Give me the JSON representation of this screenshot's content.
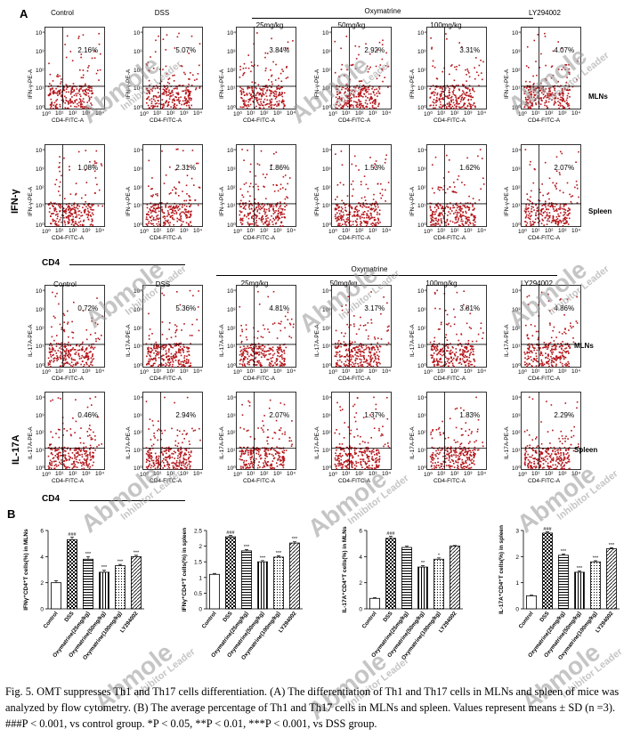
{
  "figure": {
    "panel_a_label": "A",
    "panel_b_label": "B",
    "oxymatrine_group": "Oxymatrine",
    "columns": [
      "Control",
      "DSS",
      "25mg/kg",
      "50mg/kg",
      "100mg/kg",
      "LY294002"
    ],
    "x_axis_label": "CD4-FITC-A",
    "ifn_y_axis_label": "IFN-γ-PE-A",
    "il17_y_axis_label": "IL-17A-PE-A",
    "tick_labels": [
      "10⁰",
      "10¹",
      "10²",
      "10³",
      "10⁴"
    ],
    "row_tags": {
      "mlns": "MLNs",
      "spleen": "Spleen"
    },
    "ifn_marker": "IFN-γ",
    "il17_marker": "IL-17A",
    "cd4_label": "CD4",
    "ifn_mlns_pct": [
      "2.16%",
      "5.07%",
      "3.84%",
      "2.92%",
      "3.31%",
      "4.07%"
    ],
    "ifn_spleen_pct": [
      "1.08%",
      "2.31%",
      "1.86%",
      "1.53%",
      "1.62%",
      "2.07%"
    ],
    "il17_mlns_pct": [
      "0.72%",
      "5.36%",
      "4.81%",
      "3.17%",
      "3.81%",
      "4.86%"
    ],
    "il17_spleen_pct": [
      "0.46%",
      "2.94%",
      "2.07%",
      "1.37%",
      "1.83%",
      "2.29%"
    ],
    "watermark": {
      "brand": "Abmole",
      "tagline": "Inhibitor Leader"
    },
    "caption": "Fig. 5. OMT suppresses Th1 and Th17 cells differentiation. (A) The differentiation of Th1 and Th17 cells in MLNs and spleen of mice was analyzed by flow cytometry. (B) The average percentage of Th1 and Th17 cells in MLNs and spleen. Values represent means ± SD (n =3). ###P < 0.001, vs control group. *P < 0.05, **P < 0.01, ***P < 0.001, vs DSS group."
  },
  "chart_data": [
    {
      "type": "bar",
      "ylabel": "IFNγ⁺CD4⁺T cells(%) in MLNs",
      "categories": [
        "Control",
        "DSS",
        "Oxymatrine(25mg/kg)",
        "Oxymatrine(50mg/kg)",
        "Oxymatrine(100mg/kg)",
        "LY294002"
      ],
      "values": [
        2.0,
        5.3,
        3.8,
        2.8,
        3.3,
        4.0
      ],
      "errors": [
        0.15,
        0.2,
        0.2,
        0.15,
        0.1,
        0.1
      ],
      "sig": [
        "",
        "###",
        "***",
        "***",
        "***",
        "***"
      ],
      "ylim": [
        0,
        6
      ],
      "yticks": [
        0,
        2,
        4,
        6
      ]
    },
    {
      "type": "bar",
      "ylabel": "IFNγ⁺CD4⁺T cells(%) in spleen",
      "categories": [
        "Control",
        "DSS",
        "Oxymatrine(25mg/kg)",
        "Oxymatrine(50mg/kg)",
        "Oxymatrine(100mg/kg)",
        "LY294002"
      ],
      "values": [
        1.1,
        2.3,
        1.85,
        1.5,
        1.65,
        2.1
      ],
      "errors": [
        0.03,
        0.04,
        0.04,
        0.04,
        0.04,
        0.04
      ],
      "sig": [
        "",
        "###",
        "***",
        "***",
        "***",
        "***"
      ],
      "ylim": [
        0,
        2.5
      ],
      "yticks": [
        0.0,
        0.5,
        1.0,
        1.5,
        2.0,
        2.5
      ]
    },
    {
      "type": "bar",
      "ylabel": "IL-17A⁺CD4⁺T cells(%) in MLNs",
      "categories": [
        "Control",
        "DSS",
        "Oxymatrine(25mg/kg)",
        "Oxymatrine(50mg/kg)",
        "Oxymatrine(100mg/kg)",
        "LY294002"
      ],
      "values": [
        0.8,
        5.4,
        4.7,
        3.2,
        3.8,
        4.8
      ],
      "errors": [
        0.05,
        0.15,
        0.1,
        0.1,
        0.1,
        0.05
      ],
      "sig": [
        "",
        "###",
        "",
        "**",
        "*",
        ""
      ],
      "ylim": [
        0,
        6
      ],
      "yticks": [
        0,
        2,
        4,
        6
      ]
    },
    {
      "type": "bar",
      "ylabel": "IL-17A⁺CD4⁺T cells(%) in spleen",
      "categories": [
        "Control",
        "DSS",
        "Oxymatrine(25mg/kg)",
        "Oxymatrine(50mg/kg)",
        "Oxymatrine(100mg/kg)",
        "LY294002"
      ],
      "values": [
        0.5,
        2.9,
        2.05,
        1.4,
        1.8,
        2.3
      ],
      "errors": [
        0.03,
        0.05,
        0.05,
        0.05,
        0.04,
        0.04
      ],
      "sig": [
        "",
        "###",
        "***",
        "***",
        "***",
        "***"
      ],
      "ylim": [
        0,
        3
      ],
      "yticks": [
        0,
        1,
        2,
        3
      ]
    }
  ]
}
